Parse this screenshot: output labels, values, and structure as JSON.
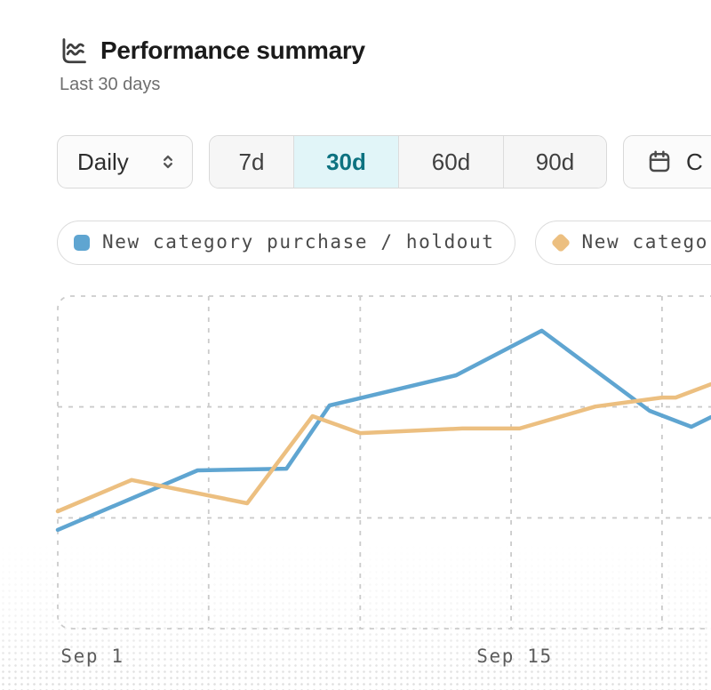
{
  "header": {
    "title": "Performance summary",
    "subtitle": "Last 30 days",
    "icon": "performance-chart-icon"
  },
  "controls": {
    "granularity": {
      "value": "Daily",
      "icon": "unfold-chevrons-icon"
    },
    "ranges": [
      {
        "label": "7d",
        "active": false
      },
      {
        "label": "30d",
        "active": true
      },
      {
        "label": "60d",
        "active": false
      },
      {
        "label": "90d",
        "active": false
      }
    ],
    "custom_range": {
      "label": "C",
      "icon": "calendar-icon",
      "note_label_truncated_by_viewport": true
    }
  },
  "legend": [
    {
      "label": "New category purchase / holdout",
      "color": "#5fa5d1",
      "swatch_shape": "rounded-square"
    },
    {
      "label": "New categor",
      "color": "#ecbf80",
      "swatch_shape": "diamond"
    }
  ],
  "colors": {
    "accent_teal": "#0c7280",
    "active_segment_bg": "#e1f5f8",
    "series_blue": "#5fa5d1",
    "series_orange": "#ecbf80",
    "gridline": "#cbcbcb",
    "text_dark": "#1b1b1b",
    "text_muted": "#6e6e6e"
  },
  "chart_data": {
    "type": "line",
    "title": "Performance summary",
    "subtitle": "Last 30 days",
    "legend_position": "top",
    "x_axis": {
      "kind": "date",
      "tick_labels": [
        {
          "label": "Sep 1",
          "x_pct": 5.3
        },
        {
          "label": "Sep 15",
          "x_pct": 69.9
        }
      ]
    },
    "y_axis": {
      "ylim": [
        0,
        100
      ],
      "tick_labels_visible": false
    },
    "grid": {
      "style": "dashed",
      "vertical_x_pct": [
        0,
        23.1,
        46.3,
        69.4,
        92.5
      ],
      "horizontal_y": [
        0,
        33.3,
        66.7,
        100
      ]
    },
    "series": [
      {
        "name": "New category purchase / holdout",
        "color": "#5fa5d1",
        "points": [
          [
            0,
            29.7
          ],
          [
            21.4,
            47.6
          ],
          [
            35.0,
            48.1
          ],
          [
            41.6,
            67.1
          ],
          [
            61.0,
            76.2
          ],
          [
            74.1,
            89.6
          ],
          [
            90.6,
            65.5
          ],
          [
            97.0,
            60.7
          ],
          [
            100,
            63.6
          ]
        ]
      },
      {
        "name": "New categor",
        "color": "#ecbf80",
        "points": [
          [
            0,
            35.3
          ],
          [
            11.3,
            44.7
          ],
          [
            29.0,
            37.7
          ],
          [
            39.0,
            63.9
          ],
          [
            46.3,
            58.8
          ],
          [
            61.9,
            60.2
          ],
          [
            70.7,
            60.2
          ],
          [
            82.3,
            66.8
          ],
          [
            92.5,
            69.5
          ],
          [
            94.6,
            69.5
          ],
          [
            100,
            73.5
          ]
        ]
      }
    ]
  }
}
